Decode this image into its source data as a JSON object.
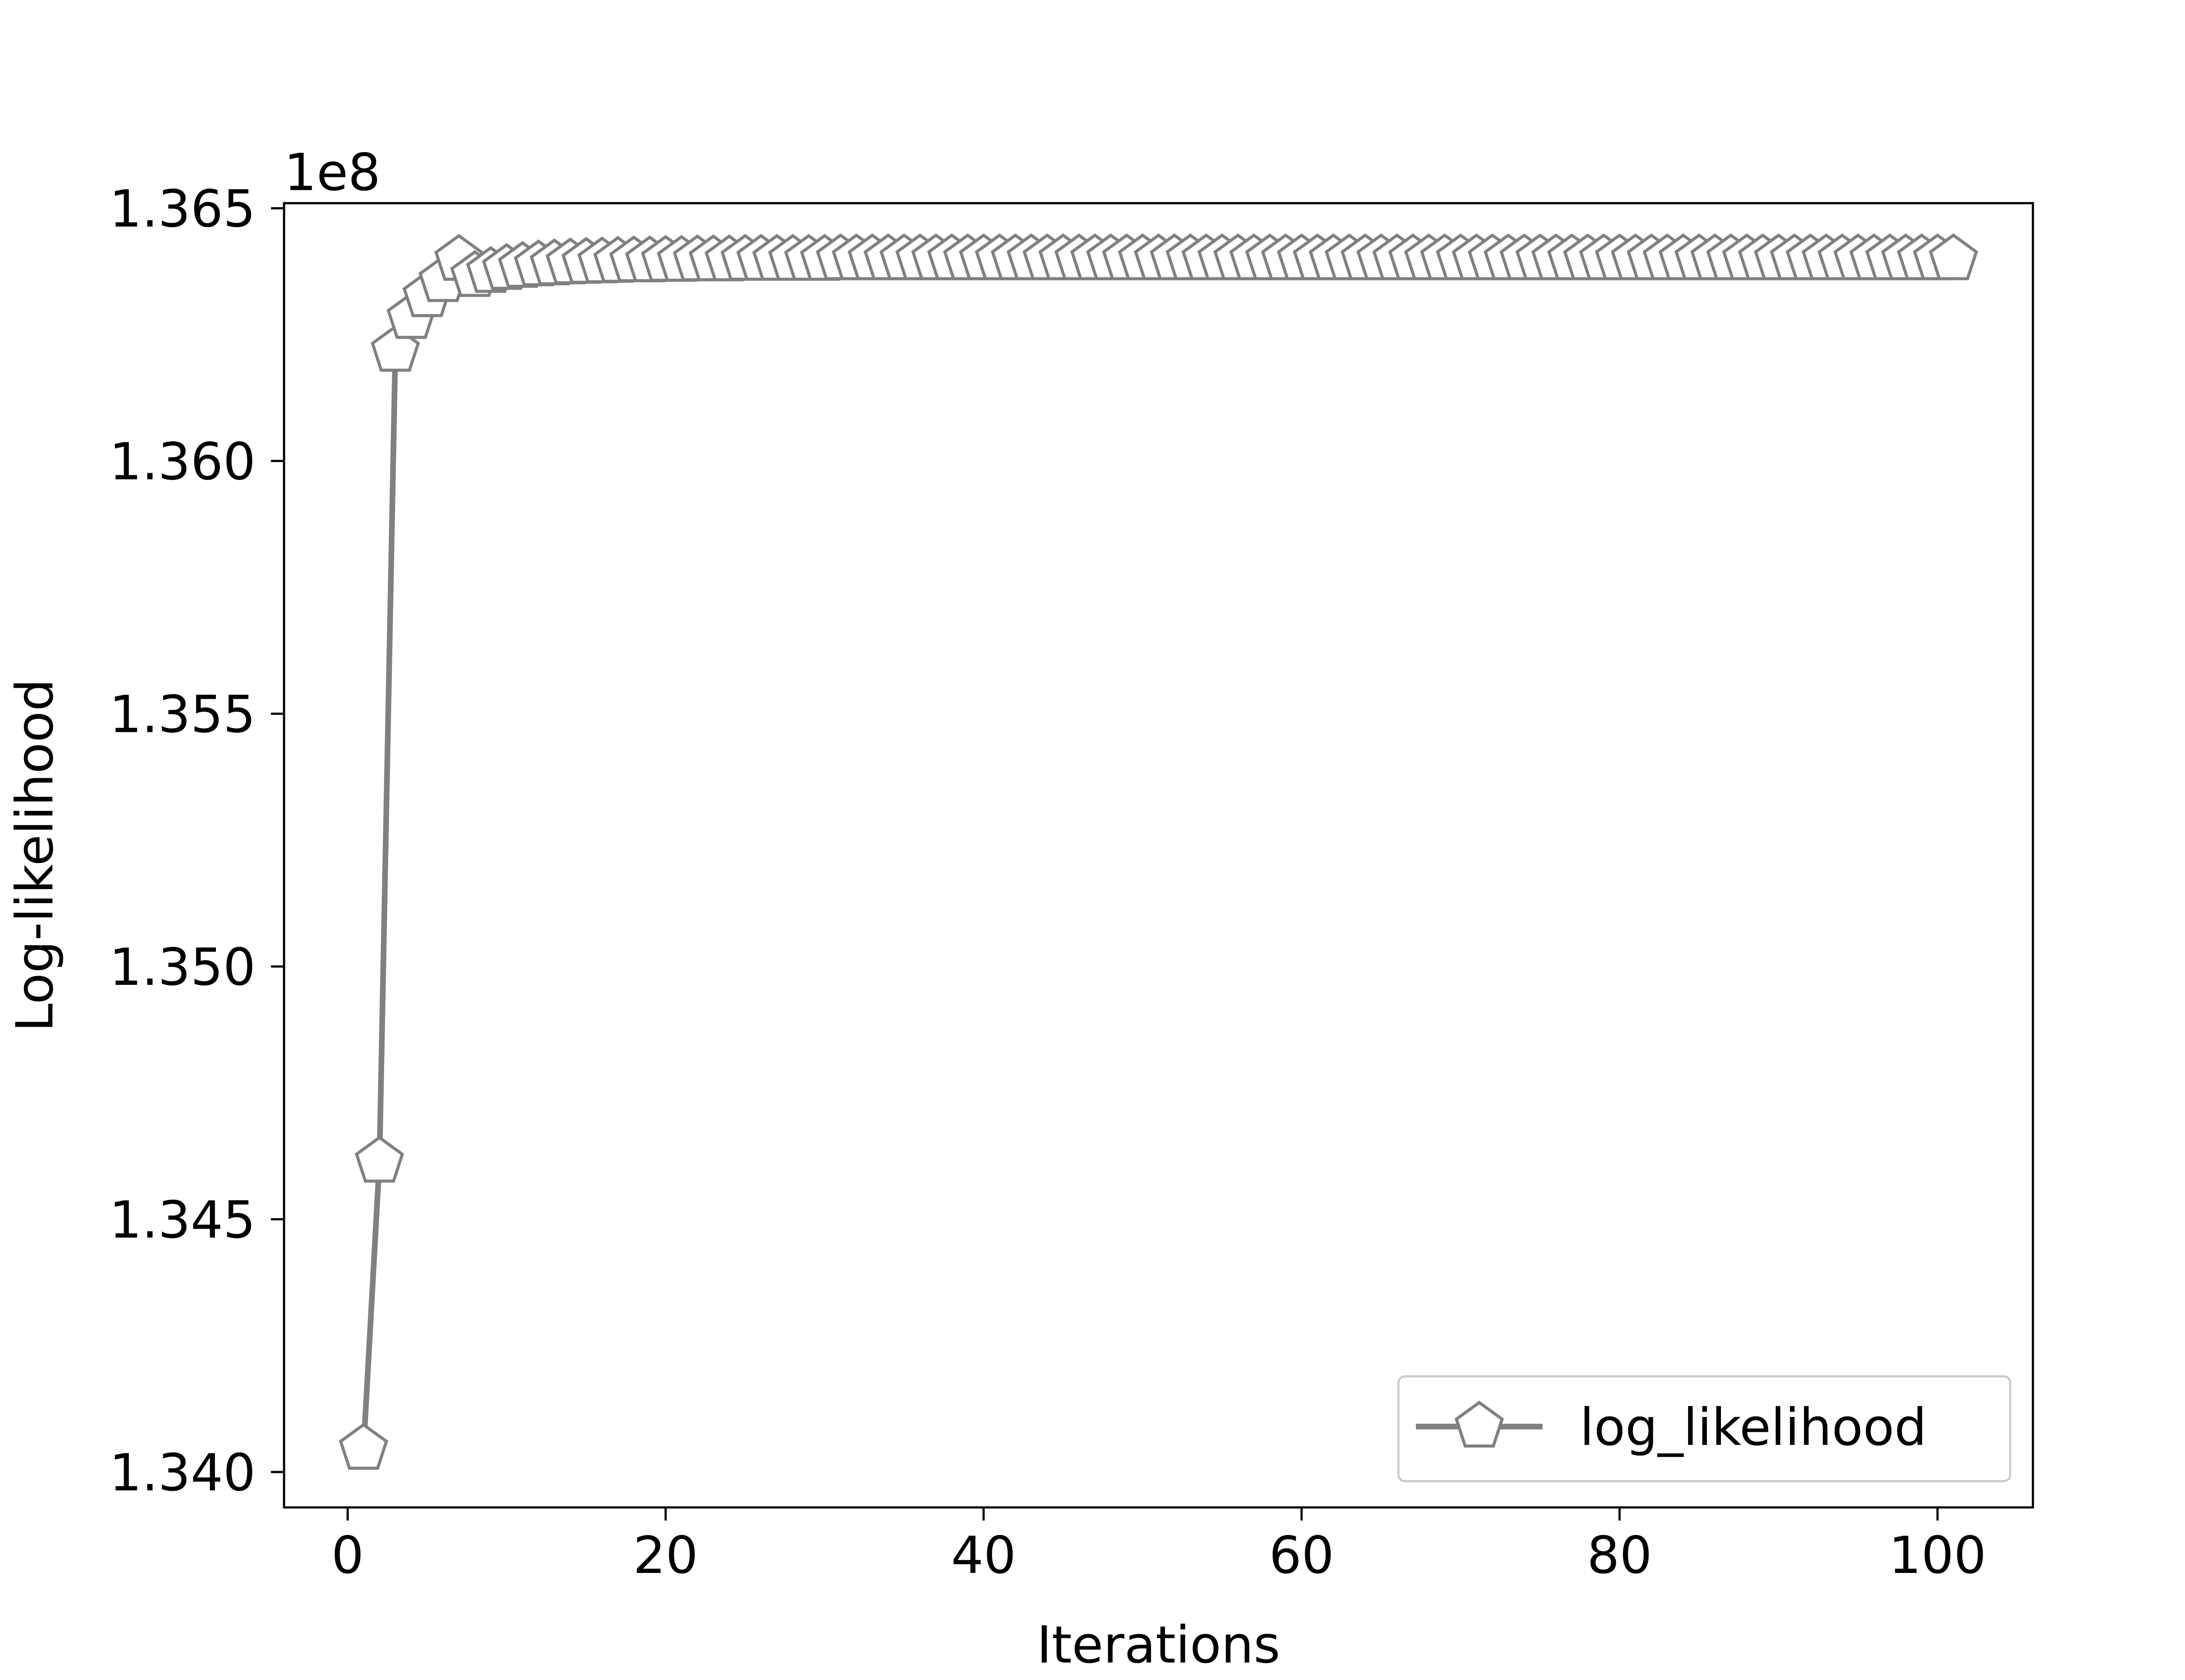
{
  "chart_data": {
    "type": "line",
    "title": "",
    "xlabel": "Iterations",
    "ylabel": "Log-likelihood",
    "offset_label": "1e8",
    "xlim": [
      -4,
      106
    ],
    "ylim": [
      1.3393,
      1.3651
    ],
    "xticks": [
      0,
      20,
      40,
      60,
      80,
      100
    ],
    "xtick_labels": [
      "0",
      "20",
      "40",
      "60",
      "80",
      "100"
    ],
    "yticks": [
      1.34,
      1.345,
      1.35,
      1.355,
      1.36,
      1.365
    ],
    "ytick_labels": [
      "1.340",
      "1.345",
      "1.350",
      "1.355",
      "1.360",
      "1.365"
    ],
    "grid": false,
    "legend_position": "lower-right",
    "series": [
      {
        "name": "log_likelihood",
        "color": "#808080",
        "marker": "pentagon-open",
        "x_start": 1,
        "x_step": 1,
        "values": [
          1.34046,
          1.34614,
          1.36218,
          1.36283,
          1.36326,
          1.36356,
          1.36398,
          1.36366,
          1.36374,
          1.3638,
          1.36384,
          1.36387,
          1.36389,
          1.36391,
          1.36392,
          1.36393,
          1.36394,
          1.36395,
          1.36395,
          1.36396,
          1.36396,
          1.36397,
          1.36397,
          1.36397,
          1.36398,
          1.36398,
          1.36398,
          1.36398,
          1.36398,
          1.36398,
          1.36399,
          1.36399,
          1.36399,
          1.36399,
          1.36399,
          1.36399,
          1.36399,
          1.36399,
          1.36399,
          1.36399,
          1.36399,
          1.36399,
          1.36399,
          1.36399,
          1.36399,
          1.36399,
          1.36399,
          1.36399,
          1.36399,
          1.36399,
          1.36399,
          1.36399,
          1.36399,
          1.36399,
          1.36399,
          1.36399,
          1.36399,
          1.36399,
          1.36399,
          1.36399,
          1.36399,
          1.36399,
          1.36399,
          1.36399,
          1.36399,
          1.36399,
          1.36399,
          1.36399,
          1.36399,
          1.36399,
          1.36399,
          1.36399,
          1.36399,
          1.36399,
          1.36399,
          1.36399,
          1.36399,
          1.36399,
          1.36399,
          1.36399,
          1.36399,
          1.36399,
          1.36399,
          1.36399,
          1.36399,
          1.36399,
          1.36399,
          1.36399,
          1.36399,
          1.36399,
          1.36399,
          1.36399,
          1.36399,
          1.36399,
          1.36399,
          1.36399,
          1.36399,
          1.36399,
          1.36399,
          1.36399,
          1.36399
        ]
      }
    ]
  }
}
